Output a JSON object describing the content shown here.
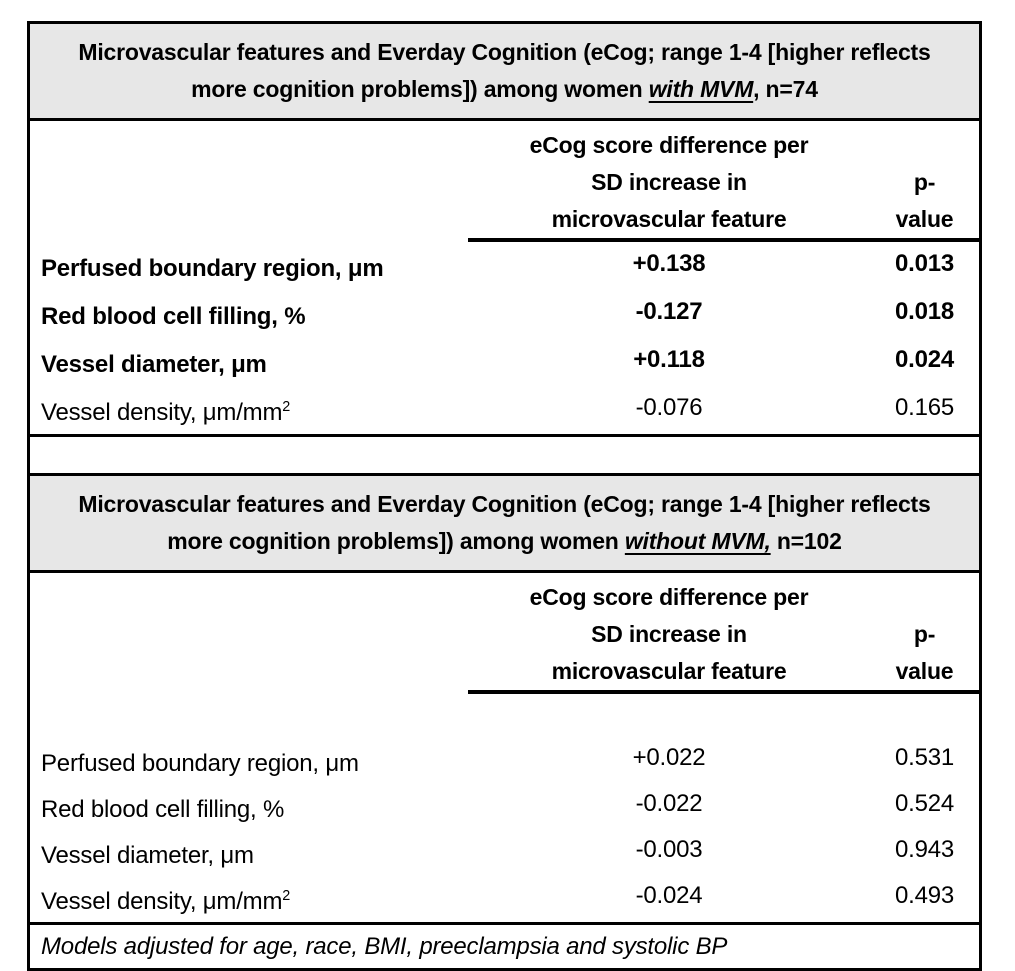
{
  "colors": {
    "header_background": "#e7e7e7",
    "border": "#000000",
    "text": "#000000",
    "page_background": "#ffffff"
  },
  "sections": [
    {
      "title": {
        "prefix": "Microvascular features and Everday Cognition (eCog; range 1-4 [higher reflects more cognition problems]) among women ",
        "emphasis": "with MVM",
        "suffix": ", n=74"
      },
      "col_header": {
        "estimate_lines": [
          "eCog score difference per",
          "SD increase in",
          "microvascular feature"
        ],
        "p_lines": [
          "p-",
          "value"
        ]
      },
      "rows": [
        {
          "label": "Perfused boundary region, μm",
          "estimate": "+0.138",
          "p": "0.013"
        },
        {
          "label": "Red blood cell filling, %",
          "estimate": "-0.127",
          "p": "0.018"
        },
        {
          "label": "Vessel diameter, μm",
          "estimate": "+0.118",
          "p": "0.024"
        },
        {
          "label": "Vessel density, μm/mm",
          "label_sup": "2",
          "estimate": "-0.076",
          "p": "0.165"
        }
      ]
    },
    {
      "title": {
        "prefix": "Microvascular features and Everday Cognition (eCog; range 1-4 [higher reflects more cognition problems]) among women ",
        "emphasis": "without MVM,",
        "suffix": " n=102"
      },
      "col_header": {
        "estimate_lines": [
          "eCog score difference per",
          "SD increase in",
          "microvascular feature"
        ],
        "p_lines": [
          "p-",
          "value"
        ]
      },
      "rows": [
        {
          "label": "Perfused boundary region, μm",
          "estimate": "+0.022",
          "p": "0.531"
        },
        {
          "label": "Red blood cell filling, %",
          "estimate": "-0.022",
          "p": "0.524"
        },
        {
          "label": "Vessel diameter, μm",
          "estimate": "-0.003",
          "p": "0.943"
        },
        {
          "label": "Vessel density, μm/mm",
          "label_sup": "2",
          "estimate": "-0.024",
          "p": "0.493"
        }
      ]
    }
  ],
  "footnote": "Models adjusted for age, race, BMI, preeclampsia and systolic BP"
}
